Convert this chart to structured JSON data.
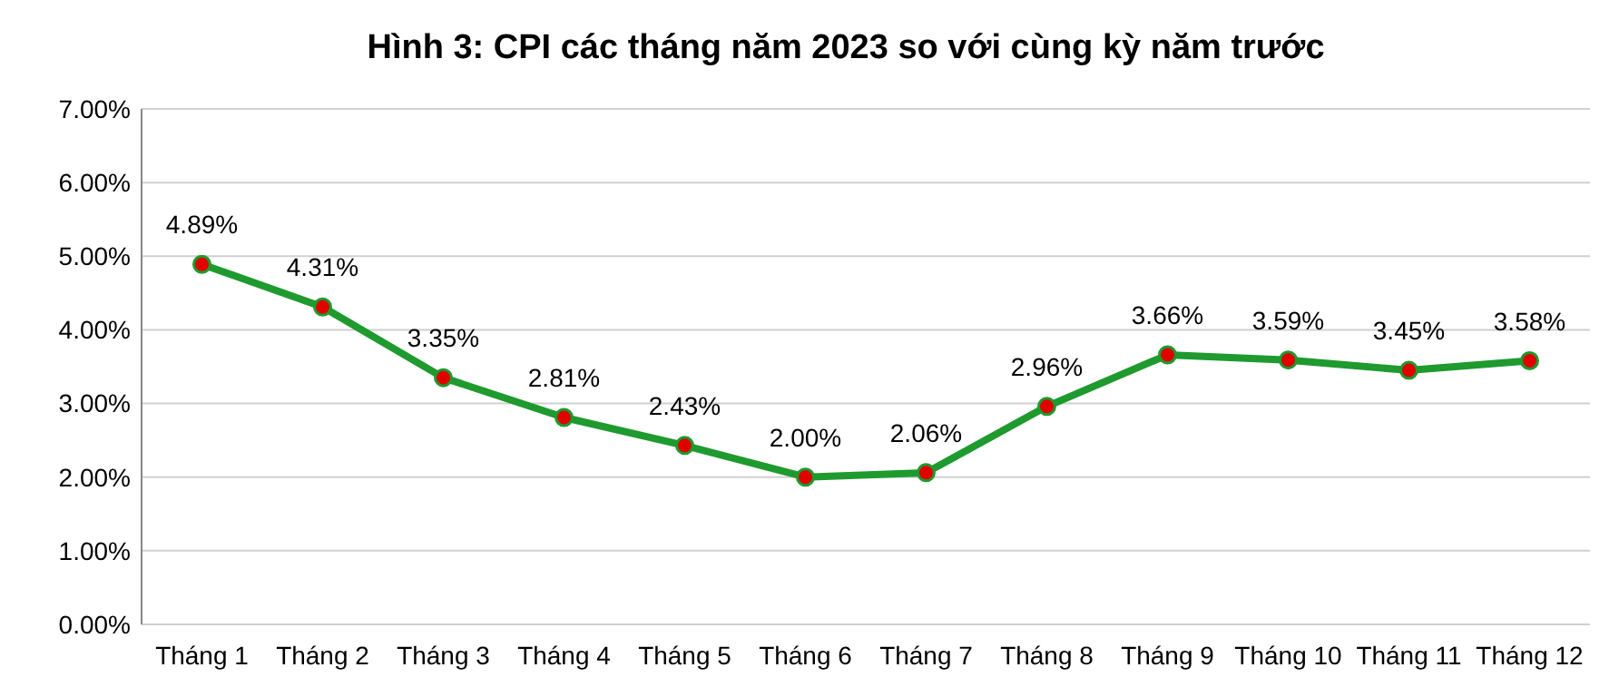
{
  "chart_data": {
    "type": "line",
    "title": "Hình 3: CPI các tháng năm 2023 so với cùng kỳ năm trước",
    "categories": [
      "Tháng 1",
      "Tháng 2",
      "Tháng 3",
      "Tháng 4",
      "Tháng 5",
      "Tháng 6",
      "Tháng 7",
      "Tháng 8",
      "Tháng 9",
      "Tháng 10",
      "Tháng 11",
      "Tháng 12"
    ],
    "series": [
      {
        "color": "#1e9a2e",
        "values": [
          4.89,
          4.31,
          3.35,
          2.81,
          2.43,
          2.0,
          2.06,
          2.96,
          3.66,
          3.59,
          3.45,
          3.58
        ],
        "value_labels": [
          "4.89%",
          "4.31%",
          "3.35%",
          "2.81%",
          "2.43%",
          "2.00%",
          "2.06%",
          "2.96%",
          "3.66%",
          "3.59%",
          "3.45%",
          "3.58%"
        ]
      }
    ],
    "ylim": [
      0,
      7
    ],
    "yticks": [
      {
        "value": 0,
        "label": "0.00%"
      },
      {
        "value": 1,
        "label": "1.00%"
      },
      {
        "value": 2,
        "label": "2.00%"
      },
      {
        "value": 3,
        "label": "3.00%"
      },
      {
        "value": 4,
        "label": "4.00%"
      },
      {
        "value": 5,
        "label": "5.00%"
      },
      {
        "value": 6,
        "label": "6.00%"
      },
      {
        "value": 7,
        "label": "7.00%"
      }
    ],
    "grid": "y",
    "marker": "circle",
    "line_style": "solid"
  }
}
